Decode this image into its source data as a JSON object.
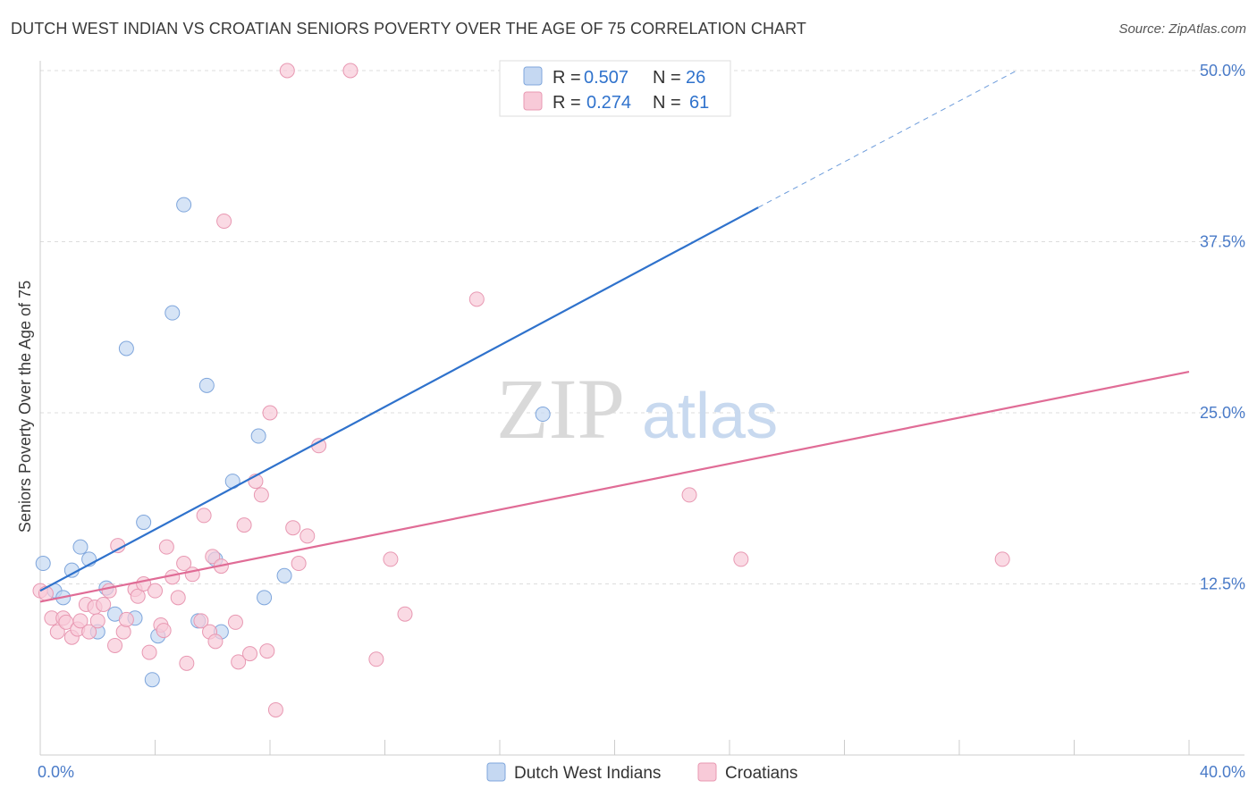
{
  "title": "DUTCH WEST INDIAN VS CROATIAN SENIORS POVERTY OVER THE AGE OF 75 CORRELATION CHART",
  "source": "Source: ZipAtlas.com",
  "watermark": {
    "zip": "ZIP",
    "atlas": "atlas"
  },
  "colors": {
    "blue_fill": "#c5d8f2",
    "blue_stroke": "#7fa6dc",
    "blue_line": "#2f72cc",
    "pink_fill": "#f8cad8",
    "pink_stroke": "#e898b2",
    "pink_line": "#e06c96",
    "tick_text": "#4a7bc8",
    "grid": "#dddddd"
  },
  "legend": {
    "r_label": "R =",
    "n_label": "N =",
    "series": [
      {
        "r": "0.507",
        "n": "26"
      },
      {
        "r": "0.274",
        "n": "61"
      }
    ]
  },
  "chart_data": {
    "type": "scatter",
    "title": "DUTCH WEST INDIAN VS CROATIAN SENIORS POVERTY OVER THE AGE OF 75 CORRELATION CHART",
    "xlabel": "",
    "ylabel": "Seniors Poverty Over the Age of 75",
    "xlim": [
      0,
      40
    ],
    "ylim": [
      0,
      50
    ],
    "x_tick_labels": [
      "0.0%",
      "40.0%"
    ],
    "y_ticks": [
      12.5,
      25.0,
      37.5,
      50.0
    ],
    "y_tick_labels": [
      "12.5%",
      "25.0%",
      "37.5%",
      "50.0%"
    ],
    "grid": true,
    "legend_position": "top-center",
    "series": [
      {
        "name": "Dutch West Indians",
        "color": "#7fa6dc",
        "points": [
          [
            0.1,
            14.0
          ],
          [
            0.5,
            12.0
          ],
          [
            0.8,
            11.5
          ],
          [
            1.1,
            13.5
          ],
          [
            1.4,
            15.2
          ],
          [
            1.7,
            14.3
          ],
          [
            2.0,
            9.0
          ],
          [
            2.3,
            12.2
          ],
          [
            2.6,
            10.3
          ],
          [
            3.0,
            29.7
          ],
          [
            3.3,
            10.0
          ],
          [
            3.6,
            17.0
          ],
          [
            3.9,
            5.5
          ],
          [
            4.1,
            8.7
          ],
          [
            4.6,
            32.3
          ],
          [
            5.0,
            40.2
          ],
          [
            5.5,
            9.8
          ],
          [
            5.8,
            27.0
          ],
          [
            6.1,
            14.3
          ],
          [
            6.3,
            9.0
          ],
          [
            6.7,
            20.0
          ],
          [
            7.6,
            23.3
          ],
          [
            7.8,
            11.5
          ],
          [
            8.5,
            13.1
          ],
          [
            17.5,
            24.9
          ],
          [
            17.0,
            50.0
          ]
        ],
        "trend": {
          "x0": 0,
          "y0": 12.0,
          "x1": 25.0,
          "y1": 40.0,
          "dashed_to": {
            "x": 34.0,
            "y": 50.0
          }
        }
      },
      {
        "name": "Croatians",
        "color": "#e898b2",
        "points": [
          [
            0.0,
            12.0
          ],
          [
            0.2,
            11.8
          ],
          [
            0.4,
            10.0
          ],
          [
            0.6,
            9.0
          ],
          [
            0.8,
            10.0
          ],
          [
            0.9,
            9.7
          ],
          [
            1.1,
            8.6
          ],
          [
            1.3,
            9.2
          ],
          [
            1.4,
            9.8
          ],
          [
            1.6,
            11.0
          ],
          [
            1.7,
            9.0
          ],
          [
            1.9,
            10.8
          ],
          [
            2.0,
            9.8
          ],
          [
            2.2,
            11.0
          ],
          [
            2.4,
            12.0
          ],
          [
            2.6,
            8.0
          ],
          [
            2.7,
            15.3
          ],
          [
            2.9,
            9.0
          ],
          [
            3.0,
            9.9
          ],
          [
            3.3,
            12.1
          ],
          [
            3.4,
            11.6
          ],
          [
            3.6,
            12.5
          ],
          [
            3.8,
            7.5
          ],
          [
            4.0,
            12.0
          ],
          [
            4.2,
            9.5
          ],
          [
            4.3,
            9.1
          ],
          [
            4.4,
            15.2
          ],
          [
            4.6,
            13.0
          ],
          [
            4.8,
            11.5
          ],
          [
            5.0,
            14.0
          ],
          [
            5.1,
            6.7
          ],
          [
            5.3,
            13.2
          ],
          [
            5.6,
            9.8
          ],
          [
            5.7,
            17.5
          ],
          [
            5.9,
            9.0
          ],
          [
            6.0,
            14.5
          ],
          [
            6.1,
            8.3
          ],
          [
            6.3,
            13.8
          ],
          [
            6.4,
            39.0
          ],
          [
            6.8,
            9.7
          ],
          [
            6.9,
            6.8
          ],
          [
            7.1,
            16.8
          ],
          [
            7.3,
            7.4
          ],
          [
            7.5,
            20.0
          ],
          [
            7.7,
            19.0
          ],
          [
            7.9,
            7.6
          ],
          [
            8.0,
            25.0
          ],
          [
            8.2,
            3.3
          ],
          [
            8.8,
            16.6
          ],
          [
            9.0,
            14.0
          ],
          [
            9.3,
            16.0
          ],
          [
            9.7,
            22.6
          ],
          [
            10.8,
            50.0
          ],
          [
            11.7,
            7.0
          ],
          [
            12.2,
            14.3
          ],
          [
            12.7,
            10.3
          ],
          [
            15.2,
            33.3
          ],
          [
            22.6,
            19.0
          ],
          [
            24.4,
            14.3
          ],
          [
            33.5,
            14.3
          ],
          [
            8.6,
            50.0
          ]
        ],
        "trend": {
          "x0": 0,
          "y0": 11.2,
          "x1": 40.0,
          "y1": 28.0
        }
      }
    ]
  },
  "bottom_legend": [
    {
      "label": "Dutch West Indians"
    },
    {
      "label": "Croatians"
    }
  ]
}
